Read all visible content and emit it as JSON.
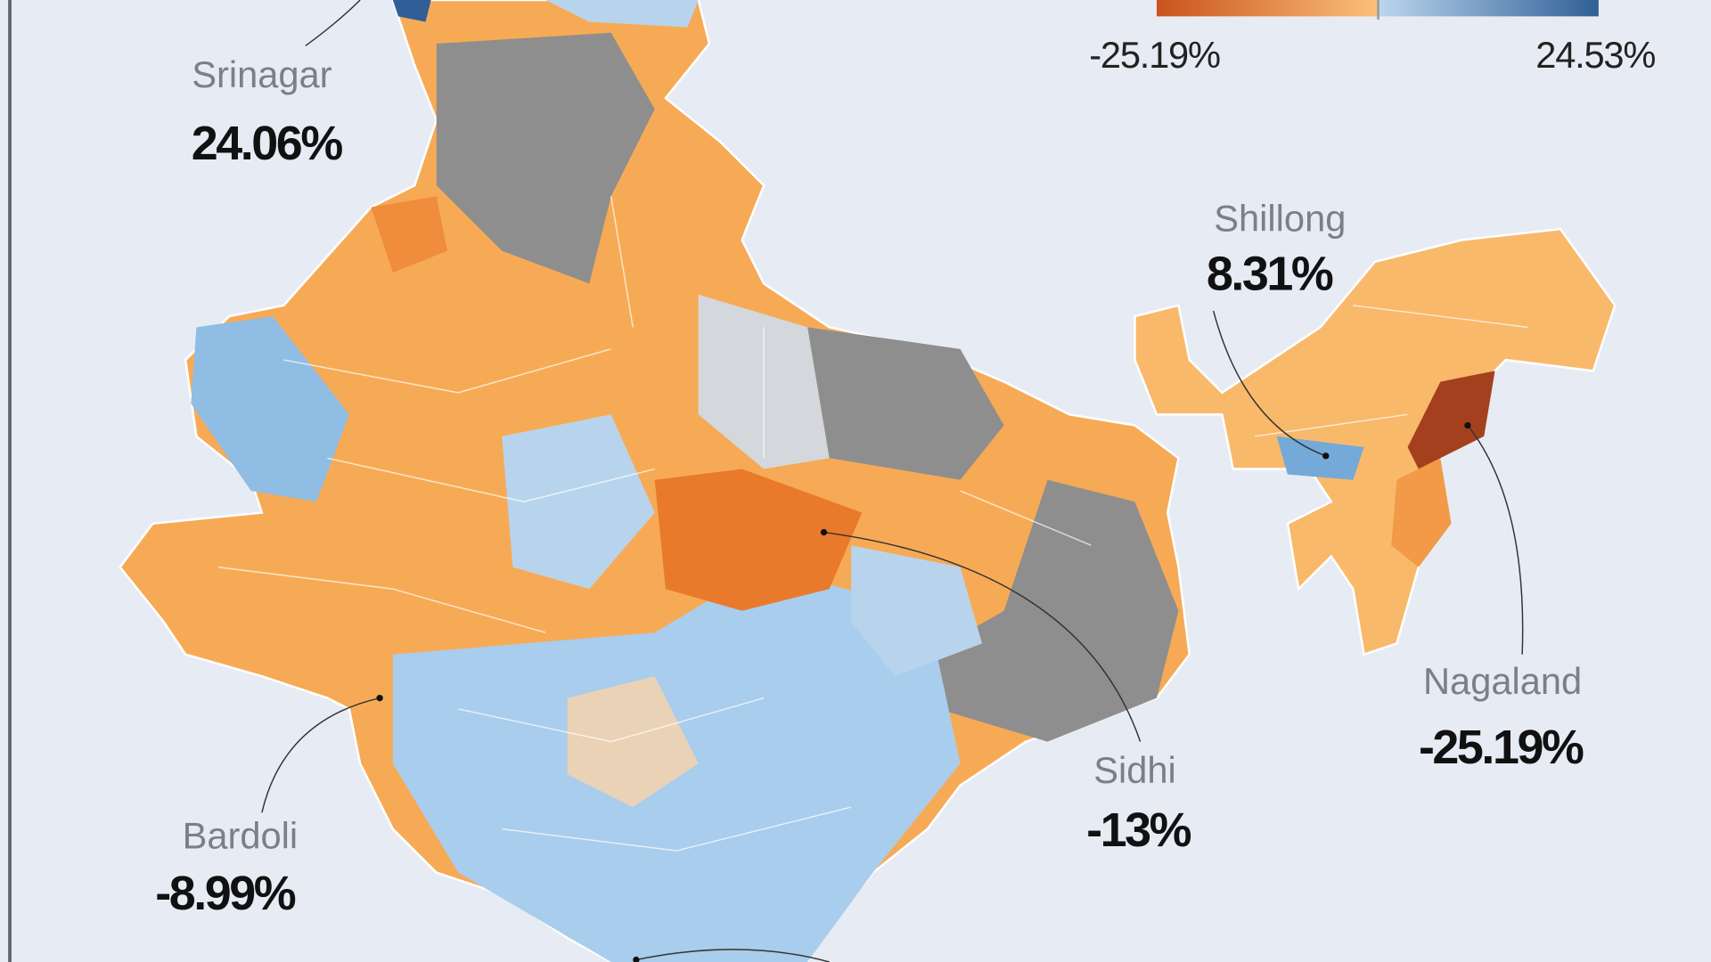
{
  "legend": {
    "min": "-25.19%",
    "max": "24.53%"
  },
  "callouts": [
    {
      "name": "Srinagar",
      "value": "24.06%"
    },
    {
      "name": "Shillong",
      "value": "8.31%"
    },
    {
      "name": "Nagaland",
      "value": "-25.19%"
    },
    {
      "name": "Sidhi",
      "value": "-13%"
    },
    {
      "name": "Bardoli",
      "value": "-8.99%"
    }
  ]
}
